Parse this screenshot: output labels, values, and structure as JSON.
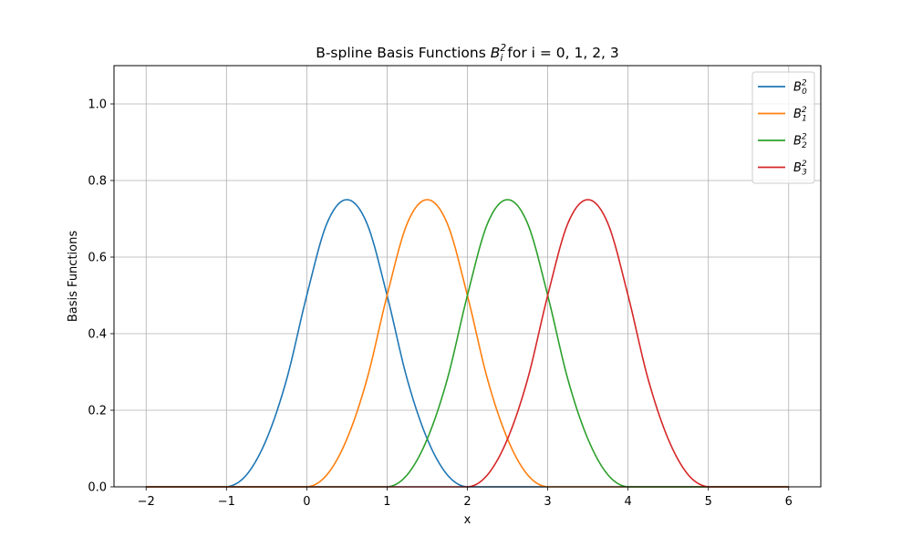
{
  "chart_data": {
    "type": "line",
    "title": {
      "prefix": "B-spline Basis Functions ",
      "symbol": "B",
      "superscript": "2",
      "subscript": "i",
      "suffix": " for i = 0, 1, 2, 3"
    },
    "xlabel": "x",
    "ylabel": "Basis Functions",
    "xlim": [
      -2.4,
      6.4
    ],
    "ylim": [
      0,
      1.1
    ],
    "xticks": [
      -2,
      -1,
      0,
      1,
      2,
      3,
      4,
      5,
      6
    ],
    "xtick_labels": [
      "−2",
      "−1",
      "0",
      "1",
      "2",
      "3",
      "4",
      "5",
      "6"
    ],
    "yticks": [
      0.0,
      0.2,
      0.4,
      0.6,
      0.8,
      1.0
    ],
    "ytick_labels": [
      "0.0",
      "0.2",
      "0.4",
      "0.6",
      "0.8",
      "1.0"
    ],
    "grid": true,
    "legend_position": "upper-right",
    "x_range": [
      -2,
      6
    ],
    "series": [
      {
        "symbol": "B",
        "superscript": "2",
        "subscript": "0",
        "color": "#1f77b4",
        "x": [
          -2,
          -1,
          -0.75,
          -0.5,
          -0.25,
          0,
          0.25,
          0.5,
          0.75,
          1,
          1.25,
          1.5,
          1.75,
          2,
          6
        ],
        "y": [
          0,
          0,
          0.0313,
          0.125,
          0.2813,
          0.5,
          0.6875,
          0.75,
          0.6875,
          0.5,
          0.2813,
          0.125,
          0.0313,
          0,
          0
        ]
      },
      {
        "symbol": "B",
        "superscript": "2",
        "subscript": "1",
        "color": "#ff7f0e",
        "x": [
          -2,
          0,
          0.25,
          0.5,
          0.75,
          1,
          1.25,
          1.5,
          1.75,
          2,
          2.25,
          2.5,
          2.75,
          3,
          6
        ],
        "y": [
          0,
          0,
          0.0313,
          0.125,
          0.2813,
          0.5,
          0.6875,
          0.75,
          0.6875,
          0.5,
          0.2813,
          0.125,
          0.0313,
          0,
          0
        ]
      },
      {
        "symbol": "B",
        "superscript": "2",
        "subscript": "2",
        "color": "#2ca02c",
        "x": [
          -2,
          1,
          1.25,
          1.5,
          1.75,
          2,
          2.25,
          2.5,
          2.75,
          3,
          3.25,
          3.5,
          3.75,
          4,
          6
        ],
        "y": [
          0,
          0,
          0.0313,
          0.125,
          0.2813,
          0.5,
          0.6875,
          0.75,
          0.6875,
          0.5,
          0.2813,
          0.125,
          0.0313,
          0,
          0
        ]
      },
      {
        "symbol": "B",
        "superscript": "2",
        "subscript": "3",
        "color": "#d62728",
        "x": [
          -2,
          2,
          2.25,
          2.5,
          2.75,
          3,
          3.25,
          3.5,
          3.75,
          4,
          4.25,
          4.5,
          4.75,
          5,
          6
        ],
        "y": [
          0,
          0,
          0.0313,
          0.125,
          0.2813,
          0.5,
          0.6875,
          0.75,
          0.6875,
          0.5,
          0.2813,
          0.125,
          0.0313,
          0,
          0
        ]
      }
    ]
  }
}
